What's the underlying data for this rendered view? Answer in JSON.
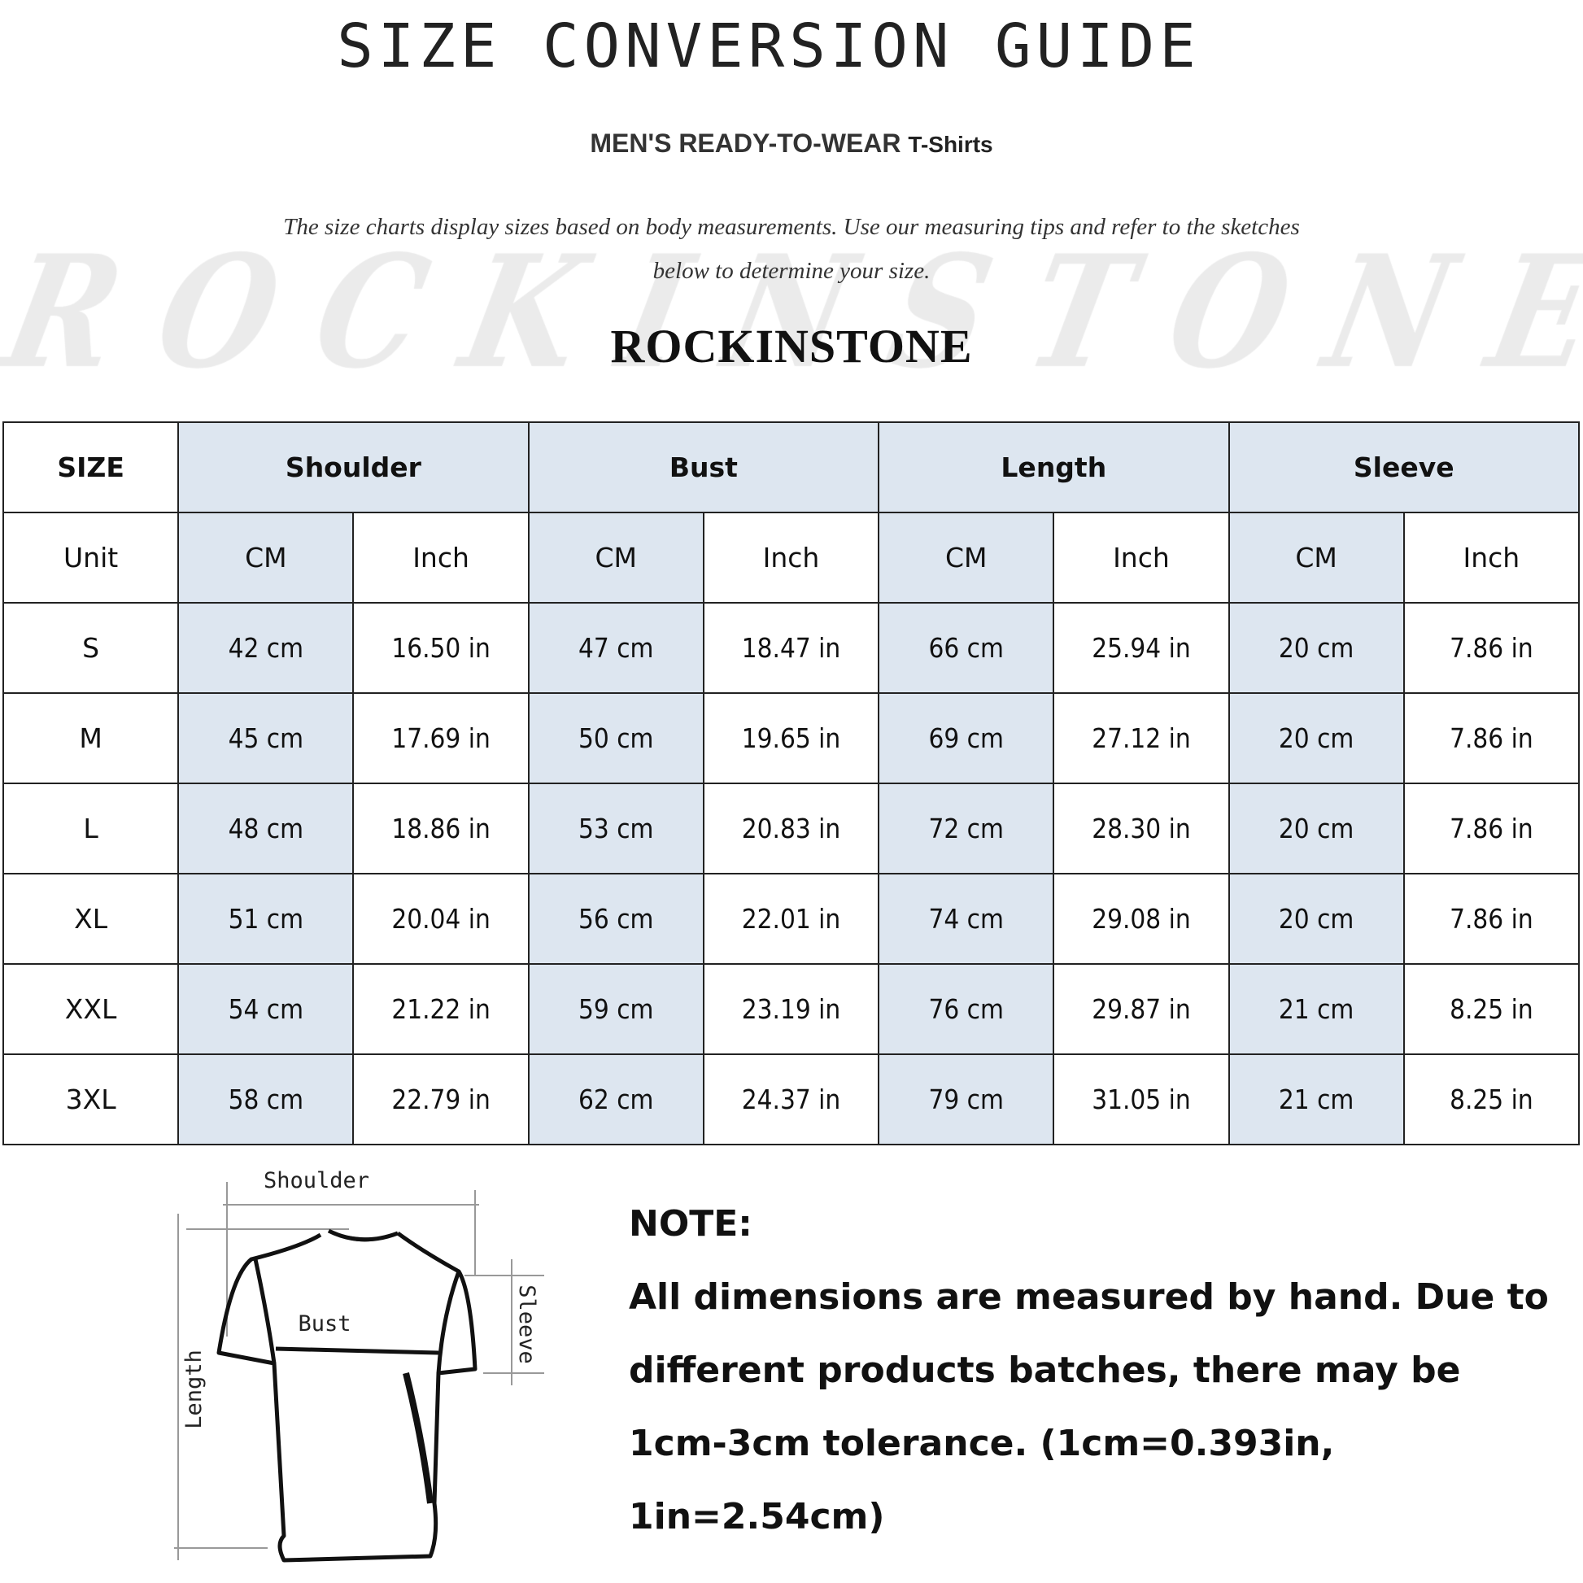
{
  "title": "SIZE CONVERSION GUIDE",
  "subtitle": {
    "main": "MEN'S READY-TO-WEAR",
    "product": "T-Shirts"
  },
  "intro": [
    "The size charts display sizes based on body measurements. Use our measuring tips and refer to the sketches",
    "below to determine your size."
  ],
  "watermark": "ROCKINSTONE",
  "brand": "ROCKINSTONE",
  "table": {
    "header": {
      "size": "SIZE",
      "groups": [
        "Shoulder",
        "Bust",
        "Length",
        "Sleeve"
      ]
    },
    "units": {
      "label": "Unit",
      "values": [
        "CM",
        "Inch",
        "CM",
        "Inch",
        "CM",
        "Inch",
        "CM",
        "Inch"
      ]
    },
    "rows": [
      {
        "size": "S",
        "values": [
          "42 cm",
          "16.50 in",
          "47 cm",
          "18.47 in",
          "66 cm",
          "25.94 in",
          "20 cm",
          "7.86 in"
        ]
      },
      {
        "size": "M",
        "values": [
          "45 cm",
          "17.69 in",
          "50 cm",
          "19.65 in",
          "69 cm",
          "27.12 in",
          "20 cm",
          "7.86 in"
        ]
      },
      {
        "size": "L",
        "values": [
          "48 cm",
          "18.86 in",
          "53 cm",
          "20.83 in",
          "72 cm",
          "28.30 in",
          "20 cm",
          "7.86 in"
        ]
      },
      {
        "size": "XL",
        "values": [
          "51 cm",
          "20.04 in",
          "56 cm",
          "22.01 in",
          "74 cm",
          "29.08 in",
          "20 cm",
          "7.86 in"
        ]
      },
      {
        "size": "XXL",
        "values": [
          "54 cm",
          "21.22 in",
          "59 cm",
          "23.19 in",
          "76 cm",
          "29.87 in",
          "21 cm",
          "8.25 in"
        ]
      },
      {
        "size": "3XL",
        "values": [
          "58 cm",
          "22.79 in",
          "62 cm",
          "24.37 in",
          "79 cm",
          "31.05 in",
          "21 cm",
          "8.25 in"
        ]
      }
    ],
    "colors": {
      "shaded": "#dde6f0",
      "border": "#222222"
    }
  },
  "sketch": {
    "shoulder": "Shoulder",
    "bust": "Bust",
    "length": "Length",
    "sleeve": "Sleeve"
  },
  "note": {
    "heading": "NOTE:",
    "lines": [
      "All dimensions are measured by hand. Due to",
      "different products batches, there may be",
      "1cm-3cm tolerance. (1cm=0.393in, 1in=2.54cm)"
    ]
  }
}
